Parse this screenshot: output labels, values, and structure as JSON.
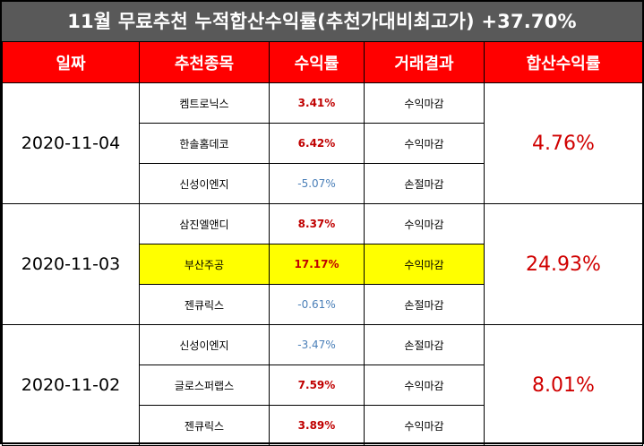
{
  "title": "11월 무료추천 누적합산수익률(추천가대비최고가) +37.70%",
  "headers": [
    "일짜",
    "추천종목",
    "수익률",
    "거래결과",
    "합산수익률"
  ],
  "groups": [
    {
      "date": "2020-11-04",
      "total": "4.76%",
      "rows": [
        {
          "stock": "켐트로닉스",
          "ret": "3.41%",
          "result": "수익마감"
        },
        {
          "stock": "한솔홈데코",
          "ret": "6.42%",
          "result": "수익마감"
        },
        {
          "stock": "신성이엔지",
          "ret": "-5.07%",
          "result": "손절마감"
        }
      ]
    },
    {
      "date": "2020-11-03",
      "total": "24.93%",
      "rows": [
        {
          "stock": "삼진엘앤디",
          "ret": "8.37%",
          "result": "수익마감"
        },
        {
          "stock": "부산주공",
          "ret": "17.17%",
          "result": "수익마감"
        },
        {
          "stock": "젠큐릭스",
          "ret": "-0.61%",
          "result": "손절마감"
        }
      ]
    },
    {
      "date": "2020-11-02",
      "total": "8.01%",
      "rows": [
        {
          "stock": "신성이엔지",
          "ret": "-3.47%",
          "result": "손절마감"
        },
        {
          "stock": "글로스퍼랩스",
          "ret": "7.59%",
          "result": "수익마감"
        },
        {
          "stock": "젠큐릭스",
          "ret": "3.89%",
          "result": "수익마감"
        }
      ]
    }
  ],
  "colors": {
    "title_bg": "#595959",
    "header_bg": "#ff0000",
    "highlight": "#ffff00",
    "positive": "#c00000",
    "negative": "#4a7fb8"
  }
}
